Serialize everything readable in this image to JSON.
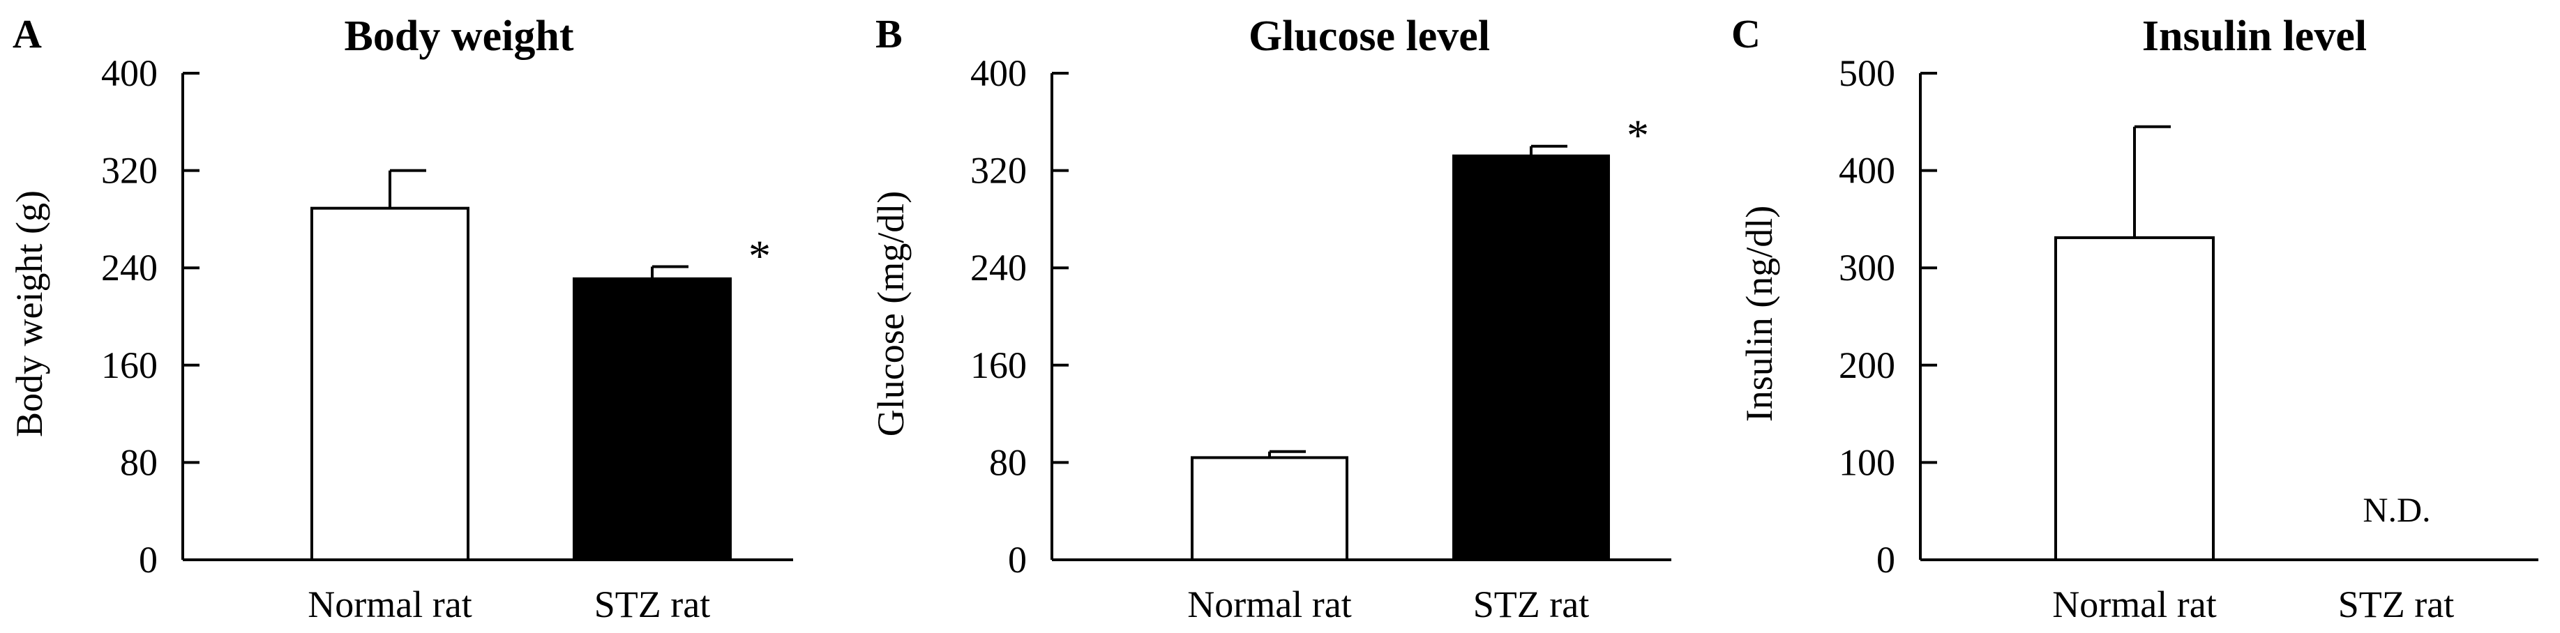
{
  "chart_data": [
    {
      "type": "bar",
      "panel_letter": "A",
      "title": "Body weight",
      "xlabel": "",
      "ylabel": "Body weight  (g)",
      "ylim": [
        0,
        400
      ],
      "yticks": [
        "0",
        "80",
        "160",
        "240",
        "320",
        "400"
      ],
      "categories": [
        "Normal rat",
        "STZ rat"
      ],
      "values": [
        289,
        231
      ],
      "errors": [
        31,
        10
      ],
      "fills": [
        "white",
        "black"
      ],
      "annotations": [
        "",
        "*"
      ]
    },
    {
      "type": "bar",
      "panel_letter": "B",
      "title": "Glucose  level",
      "xlabel": "",
      "ylabel": "Glucose (mg/dl)",
      "ylim": [
        0,
        400
      ],
      "yticks": [
        "0",
        "80",
        "160",
        "240",
        "320",
        "400"
      ],
      "categories": [
        "Normal rat",
        "STZ rat"
      ],
      "values": [
        84,
        332
      ],
      "errors": [
        5,
        8
      ],
      "fills": [
        "white",
        "black"
      ],
      "annotations": [
        "",
        "*"
      ]
    },
    {
      "type": "bar",
      "panel_letter": "C",
      "title": "Insulin  level",
      "xlabel": "",
      "ylabel": "Insulin (ng/dl)",
      "ylim": [
        0,
        500
      ],
      "yticks": [
        "0",
        "100",
        "200",
        "300",
        "400",
        "500"
      ],
      "categories": [
        "Normal rat",
        "STZ rat"
      ],
      "values": [
        331,
        null
      ],
      "errors": [
        114,
        null
      ],
      "fills": [
        "white",
        "black"
      ],
      "annotations": [
        "",
        "N.D."
      ]
    }
  ],
  "colors": {
    "axis": "#000000",
    "open_bar": "#ffffff",
    "filled_bar": "#000000"
  }
}
